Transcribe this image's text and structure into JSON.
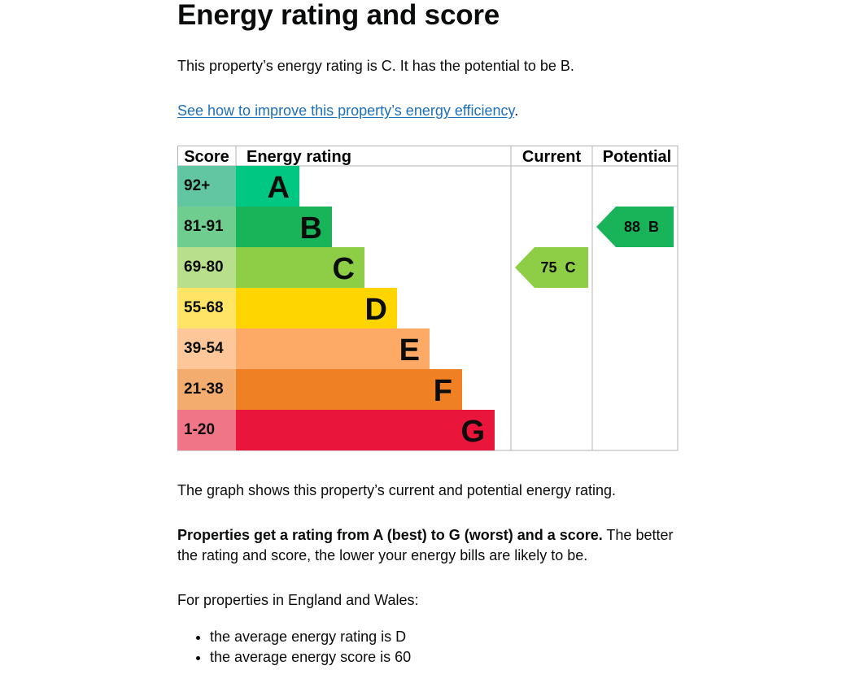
{
  "heading": "Energy rating and score",
  "intro": "This property’s energy rating is C. It has the potential to be B.",
  "improve_link": "See how to improve this property’s energy efficiency",
  "improve_suffix": ".",
  "chart_data": {
    "type": "table",
    "headers": {
      "score": "Score",
      "rating": "Energy rating",
      "current": "Current",
      "potential": "Potential"
    },
    "bands": [
      {
        "letter": "A",
        "range": "92+",
        "color": "#00c781",
        "score_bg": "#63c6a2"
      },
      {
        "letter": "B",
        "range": "81-91",
        "color": "#19b459",
        "score_bg": "#6fcd8f"
      },
      {
        "letter": "C",
        "range": "69-80",
        "color": "#8dce46",
        "score_bg": "#b7df8c"
      },
      {
        "letter": "D",
        "range": "55-68",
        "color": "#ffd500",
        "score_bg": "#ffe466"
      },
      {
        "letter": "E",
        "range": "39-54",
        "color": "#fcaa65",
        "score_bg": "#fdc79a"
      },
      {
        "letter": "F",
        "range": "21-38",
        "color": "#ef8023",
        "score_bg": "#f4ab6e"
      },
      {
        "letter": "G",
        "range": "1-20",
        "color": "#e9153b",
        "score_bg": "#f07586"
      }
    ],
    "current": {
      "score": 75,
      "band": "C",
      "color": "#8dce46"
    },
    "potential": {
      "score": 88,
      "band": "B",
      "color": "#19b459"
    }
  },
  "graph_caption": "The graph shows this property’s current and potential energy rating.",
  "ratings_bold": "Properties get a rating from A (best) to G (worst) and a score.",
  "ratings_rest_line1": " The better",
  "ratings_rest_line2": "the rating and score, the lower your energy bills are likely to be.",
  "england_wales": "For properties in England and Wales:",
  "averages": [
    "the average energy rating is D",
    "the average energy score is 60"
  ]
}
